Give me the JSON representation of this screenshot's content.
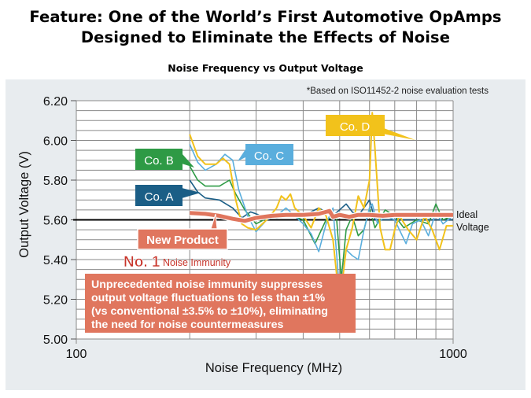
{
  "header": {
    "title_line1": "Feature: One of the World’s First Automotive OpAmps",
    "title_line2": "Designed to Eliminate the Effects of Noise"
  },
  "chart_data": {
    "type": "line",
    "title": "Noise Frequency vs Output Voltage",
    "note": "*Based on ISO11452-2 noise evaluation tests",
    "xlabel": "Noise Frequency (MHz)",
    "ylabel": "Output Voltage (V)",
    "xscale": "log",
    "xlim": [
      100,
      1000
    ],
    "ylim": [
      5.0,
      6.2
    ],
    "x_tick_labels": [
      "100",
      "1000"
    ],
    "x_gridlines": [
      200,
      300,
      400,
      500,
      600,
      700,
      800,
      900
    ],
    "y_ticks": [
      5.0,
      5.2,
      5.4,
      5.6,
      5.8,
      6.0,
      6.2
    ],
    "y_tick_labels": [
      "5.00",
      "5.20",
      "5.40",
      "5.60",
      "5.80",
      "6.00",
      "6.20"
    ],
    "y_grid_step": 0.05,
    "grid": true,
    "reference_line": {
      "value": 5.6,
      "label_line1": "Ideal",
      "label_line2": "Voltage"
    },
    "series": [
      {
        "name": "Co. D",
        "color": "#f2c21b",
        "x": [
          200,
          210,
          220,
          235,
          245,
          255,
          265,
          275,
          285,
          300,
          320,
          340,
          350,
          360,
          370,
          380,
          400,
          420,
          440,
          460,
          480,
          500,
          520,
          540,
          560,
          580,
          600,
          610,
          620,
          640,
          660,
          680,
          700,
          720,
          760,
          800,
          840,
          880,
          920,
          960,
          1000
        ],
        "y": [
          6.03,
          5.92,
          5.88,
          5.88,
          5.91,
          5.88,
          5.7,
          5.58,
          5.56,
          5.55,
          5.6,
          5.66,
          5.72,
          5.7,
          5.73,
          5.66,
          5.62,
          5.56,
          5.66,
          5.62,
          5.5,
          5.18,
          5.45,
          5.56,
          5.72,
          5.66,
          5.8,
          6.14,
          5.96,
          5.56,
          5.45,
          5.45,
          5.55,
          5.62,
          5.55,
          5.5,
          5.62,
          5.55,
          5.45,
          5.57,
          5.57
        ]
      },
      {
        "name": "Co. C",
        "color": "#5aaedd",
        "x": [
          200,
          210,
          220,
          235,
          248,
          260,
          270,
          285,
          300,
          320,
          340,
          360,
          380,
          400,
          420,
          440,
          460,
          480,
          500,
          520,
          540,
          560,
          580,
          600,
          610,
          630,
          660,
          700,
          720,
          750,
          780,
          820,
          860,
          900,
          940,
          1000
        ],
        "y": [
          5.98,
          5.89,
          5.85,
          5.88,
          5.93,
          5.9,
          5.75,
          5.62,
          5.54,
          5.6,
          5.62,
          5.66,
          5.62,
          5.58,
          5.53,
          5.44,
          5.58,
          5.66,
          5.23,
          5.45,
          5.42,
          5.4,
          5.55,
          5.66,
          5.68,
          5.58,
          5.62,
          5.6,
          5.55,
          5.48,
          5.58,
          5.6,
          5.52,
          5.64,
          5.58,
          5.62
        ]
      },
      {
        "name": "Co. B",
        "color": "#2e9a45",
        "x": [
          200,
          210,
          220,
          240,
          255,
          265,
          280,
          300,
          330,
          360,
          400,
          430,
          460,
          490,
          505,
          520,
          540,
          560,
          580,
          600,
          620,
          660,
          700,
          740,
          800,
          860,
          900,
          940,
          1000
        ],
        "y": [
          5.87,
          5.8,
          5.77,
          5.77,
          5.8,
          5.73,
          5.65,
          5.58,
          5.62,
          5.63,
          5.6,
          5.48,
          5.6,
          5.62,
          5.3,
          5.55,
          5.62,
          5.52,
          5.55,
          5.66,
          5.56,
          5.65,
          5.62,
          5.56,
          5.6,
          5.58,
          5.68,
          5.6,
          5.62
        ]
      },
      {
        "name": "Co. A",
        "color": "#1b5e86",
        "x": [
          200,
          210,
          220,
          240,
          260,
          275,
          290,
          310,
          340,
          380,
          400,
          440,
          480,
          520,
          540,
          560,
          600,
          620,
          700,
          800,
          1000
        ],
        "y": [
          5.8,
          5.74,
          5.71,
          5.7,
          5.66,
          5.61,
          5.64,
          5.62,
          5.61,
          5.62,
          5.62,
          5.66,
          5.62,
          5.68,
          5.64,
          5.62,
          5.7,
          5.6,
          5.6,
          5.6,
          5.6
        ]
      },
      {
        "name": "New Product",
        "color": "#e0765e",
        "x": [
          200,
          220,
          240,
          260,
          280,
          300,
          330,
          360,
          400,
          440,
          470,
          480,
          500,
          530,
          560,
          600,
          650,
          700,
          800,
          900,
          1000
        ],
        "y": [
          5.635,
          5.63,
          5.62,
          5.605,
          5.595,
          5.61,
          5.62,
          5.625,
          5.625,
          5.63,
          5.645,
          5.615,
          5.625,
          5.615,
          5.625,
          5.625,
          5.62,
          5.625,
          5.625,
          5.625,
          5.625
        ]
      }
    ],
    "annotations": {
      "new_product_label": "New Product",
      "rank": "No. 1",
      "rank_text": "Noise Immunity",
      "summary": [
        "Unprecedented noise immunity suppresses",
        "output voltage fluctuations to less than ±1%",
        "(vs conventional ±3.5% to ±10%), eliminating",
        "the need for noise countermeasures"
      ]
    }
  }
}
